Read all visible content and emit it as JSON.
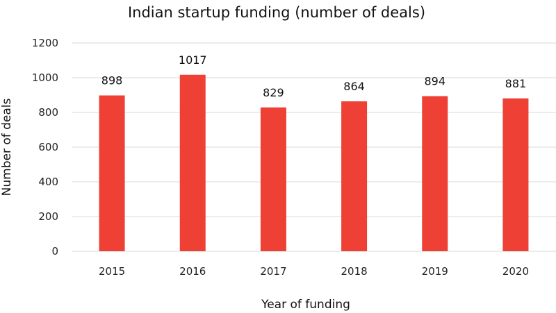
{
  "chart_data": {
    "type": "bar",
    "title": "Indian startup funding (number of deals)",
    "xlabel": "Year of funding",
    "ylabel": "Number of deals",
    "categories": [
      "2015",
      "2016",
      "2017",
      "2018",
      "2019",
      "2020"
    ],
    "values": [
      898,
      1017,
      829,
      864,
      894,
      881
    ],
    "ylim": [
      0,
      1200
    ],
    "yticks": [
      0,
      200,
      400,
      600,
      800,
      1000,
      1200
    ],
    "grid": true,
    "legend": "none",
    "bar_color": "#ee4035"
  }
}
